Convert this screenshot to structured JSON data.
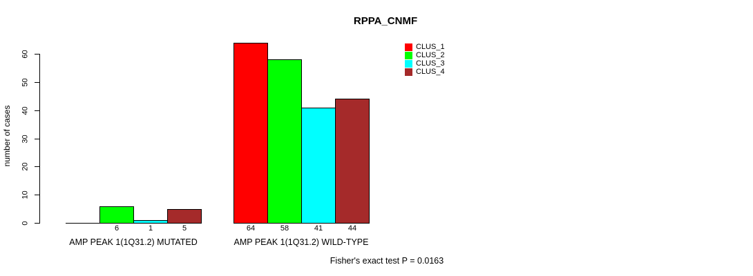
{
  "chart_data": {
    "type": "bar",
    "title": "RPPA_CNMF",
    "ylabel": "number of cases",
    "xlabel": "",
    "ylim": [
      0,
      60
    ],
    "yticks": [
      0,
      10,
      20,
      30,
      40,
      50,
      60
    ],
    "grid": false,
    "legend_position": "top-right-inside",
    "legend": [
      {
        "label": "CLUS_1",
        "color": "#FF0000"
      },
      {
        "label": "CLUS_2",
        "color": "#00FF00"
      },
      {
        "label": "CLUS_3",
        "color": "#00FFFF"
      },
      {
        "label": "CLUS_4",
        "color": "#A52A2A"
      }
    ],
    "groups": [
      {
        "label": "AMP PEAK 1(1Q31.2) MUTATED",
        "values": [
          0,
          6,
          1,
          5
        ],
        "bar_count_labels": [
          "",
          "6",
          "1",
          "5"
        ]
      },
      {
        "label": "AMP PEAK 1(1Q31.2) WILD-TYPE",
        "values": [
          64,
          58,
          41,
          44
        ],
        "bar_count_labels": [
          "64",
          "58",
          "41",
          "44"
        ]
      }
    ],
    "footnote": "Fisher's exact test P = 0.0163",
    "colors": {
      "bar_border": "#000000",
      "axis": "#000000",
      "text": "#000000",
      "background": "#FFFFFF"
    }
  }
}
